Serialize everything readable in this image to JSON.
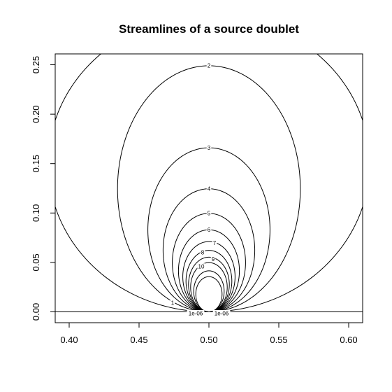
{
  "chart_data": {
    "type": "contour",
    "title": "Streamlines of a source doublet",
    "xlabel": "",
    "ylabel": "",
    "xlim": [
      0.39,
      0.61
    ],
    "ylim": [
      -0.011,
      0.261
    ],
    "x_ticks": [
      0.4,
      0.45,
      0.5,
      0.55,
      0.6
    ],
    "x_tick_labels": [
      "0.40",
      "0.45",
      "0.50",
      "0.55",
      "0.60"
    ],
    "y_ticks": [
      0.0,
      0.05,
      0.1,
      0.15,
      0.2,
      0.25
    ],
    "y_tick_labels": [
      "0.00",
      "0.05",
      "0.10",
      "0.15",
      "0.20",
      "0.25"
    ],
    "grid": false,
    "line_color": "#000000",
    "doublet_center": [
      0.5,
      0.0
    ],
    "contours": [
      {
        "level": "1",
        "label": "1",
        "top_y": 0.3,
        "x_extent": 0.115,
        "label_x": 0.474,
        "label_y": 0.009
      },
      {
        "level": "2",
        "label": "2",
        "top_y": 0.249,
        "x_extent": 0.0654,
        "label_x": 0.5,
        "label_y": 0.249
      },
      {
        "level": "3",
        "label": "3",
        "top_y": 0.166,
        "x_extent": 0.0437,
        "label_x": 0.5,
        "label_y": 0.166
      },
      {
        "level": "4",
        "label": "4",
        "top_y": 0.1245,
        "x_extent": 0.0328,
        "label_x": 0.5,
        "label_y": 0.1245
      },
      {
        "level": "5",
        "label": "5",
        "top_y": 0.0996,
        "x_extent": 0.0262,
        "label_x": 0.5,
        "label_y": 0.0996
      },
      {
        "level": "6",
        "label": "6",
        "top_y": 0.083,
        "x_extent": 0.0218,
        "label_x": 0.5,
        "label_y": 0.083
      },
      {
        "level": "7",
        "label": "7",
        "top_y": 0.0711,
        "x_extent": 0.0187,
        "label_x": 0.504,
        "label_y": 0.0695
      },
      {
        "level": "8",
        "label": "8",
        "top_y": 0.0622,
        "x_extent": 0.0164,
        "label_x": 0.4955,
        "label_y": 0.0601
      },
      {
        "level": "9",
        "label": "9",
        "top_y": 0.0553,
        "x_extent": 0.0146,
        "label_x": 0.503,
        "label_y": 0.0533
      },
      {
        "level": "10",
        "label": "10",
        "top_y": 0.0498,
        "x_extent": 0.0131,
        "label_x": 0.4945,
        "label_y": 0.0458
      },
      {
        "level": "1e-06",
        "label": "1e-06",
        "top_y": 0.0,
        "x_extent": 0.0,
        "label_x": 0.4905,
        "label_y": -0.0015
      },
      {
        "level": "1e-06",
        "label": "1e-06",
        "top_y": 0.0,
        "x_extent": 0.0,
        "label_x": 0.509,
        "label_y": -0.0015
      }
    ],
    "inner_loops": [
      {
        "top_y": 0.0415,
        "x_extent": 0.0109
      },
      {
        "top_y": 0.0356,
        "x_extent": 0.0094
      }
    ],
    "baseline_y": 0.0
  }
}
